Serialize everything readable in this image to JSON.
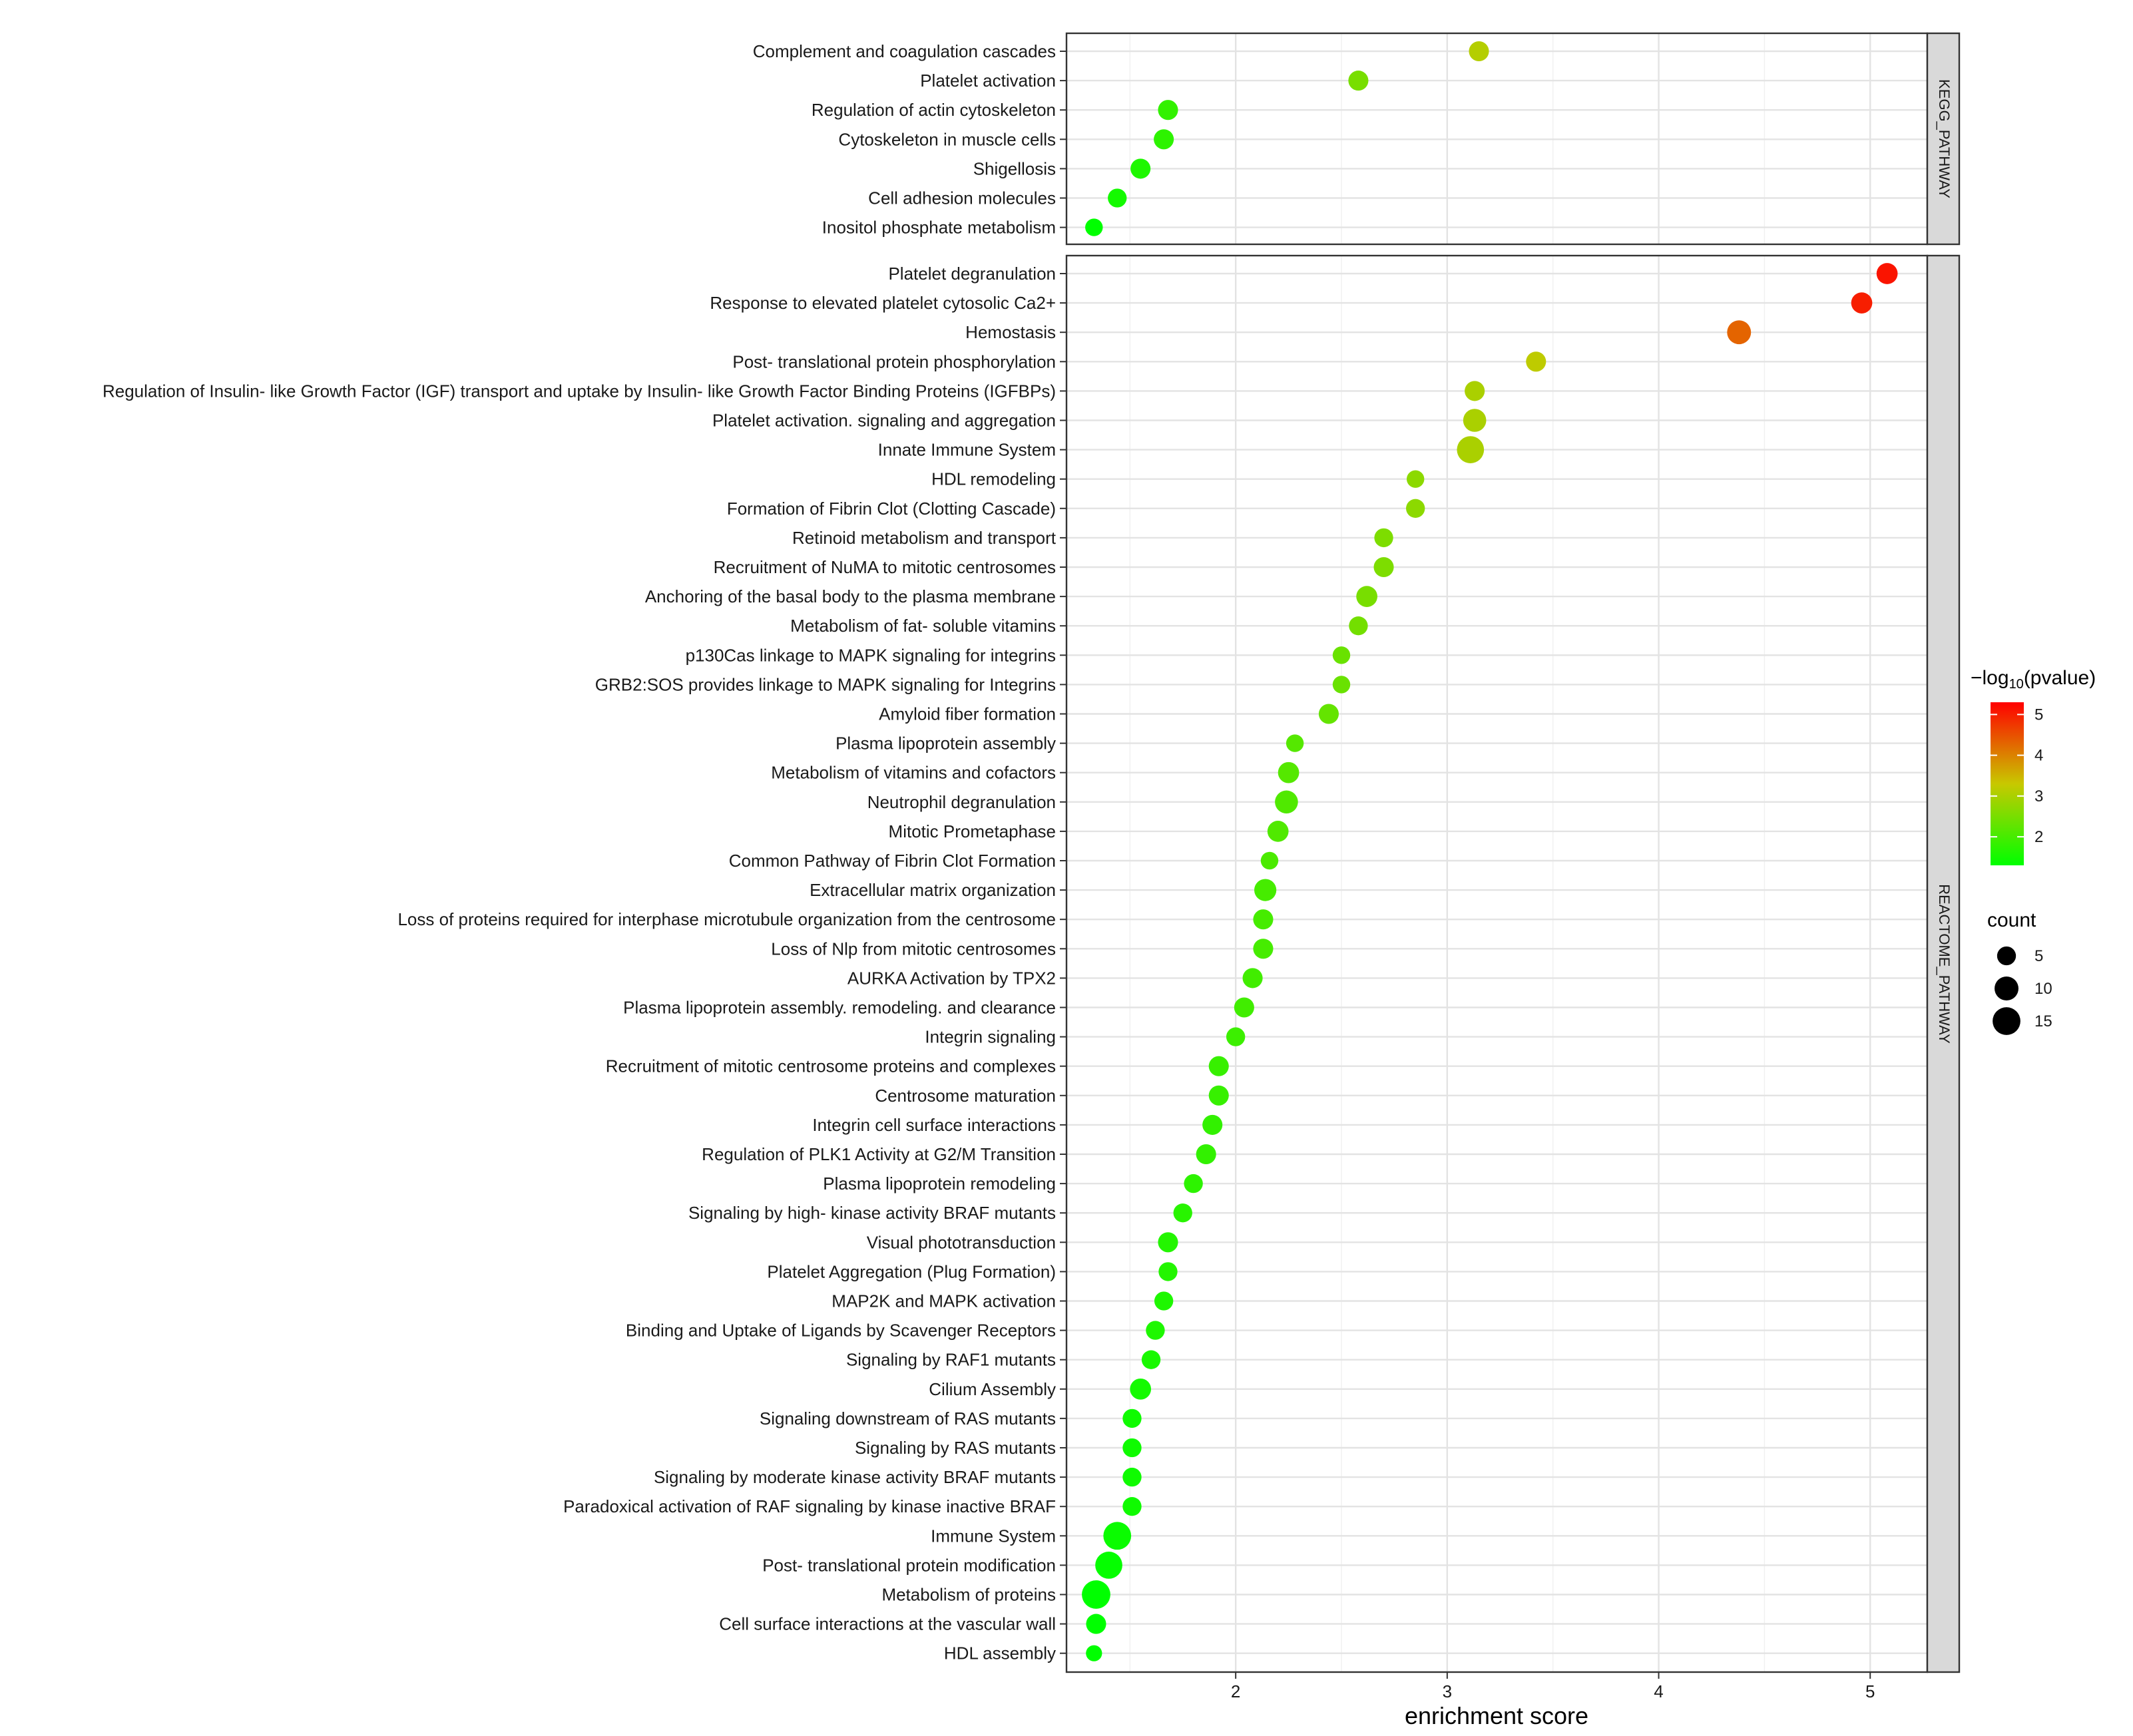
{
  "chart_data": {
    "type": "scatter",
    "x_label": "enrichment score",
    "x_ticks": [
      2,
      3,
      4,
      5
    ],
    "x_range": [
      1.2,
      5.27
    ],
    "color_scale": {
      "title_prefix": "−log",
      "title_subscript": "10",
      "title_suffix": "(pvalue)",
      "ticks": [
        2,
        3,
        4,
        5
      ],
      "range": [
        1.3,
        5.3
      ],
      "low_color": "#00ff00",
      "mid_color": "#c8c800",
      "high_color": "#ff0000"
    },
    "size_legend": {
      "title": "count",
      "values": [
        5,
        10,
        15
      ]
    },
    "panels": [
      {
        "strip": "KEGG_PATHWAY",
        "terms": [
          {
            "term": "Complement and coagulation cascades",
            "x": 3.15,
            "count": 6,
            "logp": 3.1
          },
          {
            "term": "Platelet activation",
            "x": 2.58,
            "count": 6,
            "logp": 2.5
          },
          {
            "term": "Regulation of actin cytoskeleton",
            "x": 1.68,
            "count": 6,
            "logp": 1.8
          },
          {
            "term": "Cytoskeleton in muscle cells",
            "x": 1.66,
            "count": 6,
            "logp": 1.75
          },
          {
            "term": "Shigellosis",
            "x": 1.55,
            "count": 6,
            "logp": 1.6
          },
          {
            "term": "Cell adhesion molecules",
            "x": 1.44,
            "count": 5,
            "logp": 1.5
          },
          {
            "term": "Inositol phosphate metabolism",
            "x": 1.33,
            "count": 4,
            "logp": 1.3
          }
        ]
      },
      {
        "strip": "REACTOME_PATHWAY",
        "terms": [
          {
            "term": "Platelet degranulation",
            "x": 5.08,
            "count": 7,
            "logp": 5.1
          },
          {
            "term": "Response to elevated platelet cytosolic Ca2+",
            "x": 4.96,
            "count": 7,
            "logp": 5.0
          },
          {
            "term": "Hemostasis",
            "x": 4.38,
            "count": 10,
            "logp": 4.3
          },
          {
            "term": "Post- translational protein phosphorylation",
            "x": 3.42,
            "count": 6,
            "logp": 3.2
          },
          {
            "term": "Regulation of Insulin- like Growth Factor (IGF) transport and uptake by Insulin- like Growth Factor Binding Proteins (IGFBPs)",
            "x": 3.13,
            "count": 6,
            "logp": 3.0
          },
          {
            "term": "Platelet activation. signaling and aggregation",
            "x": 3.13,
            "count": 9,
            "logp": 3.0
          },
          {
            "term": "Innate Immune System",
            "x": 3.11,
            "count": 14,
            "logp": 3.0
          },
          {
            "term": "HDL remodeling",
            "x": 2.85,
            "count": 4,
            "logp": 2.7
          },
          {
            "term": "Formation of Fibrin Clot (Clotting Cascade)",
            "x": 2.85,
            "count": 5,
            "logp": 2.7
          },
          {
            "term": "Retinoid metabolism and transport",
            "x": 2.7,
            "count": 5,
            "logp": 2.55
          },
          {
            "term": "Recruitment of NuMA to mitotic centrosomes",
            "x": 2.7,
            "count": 6,
            "logp": 2.55
          },
          {
            "term": "Anchoring of the basal body to the plasma membrane",
            "x": 2.62,
            "count": 7,
            "logp": 2.5
          },
          {
            "term": "Metabolism of fat- soluble vitamins",
            "x": 2.58,
            "count": 5,
            "logp": 2.45
          },
          {
            "term": "p130Cas linkage to MAPK signaling for integrins",
            "x": 2.5,
            "count": 4,
            "logp": 2.35
          },
          {
            "term": "GRB2:SOS provides linkage to MAPK signaling for Integrins",
            "x": 2.5,
            "count": 4,
            "logp": 2.35
          },
          {
            "term": "Amyloid fiber formation",
            "x": 2.44,
            "count": 6,
            "logp": 2.3
          },
          {
            "term": "Plasma lipoprotein assembly",
            "x": 2.28,
            "count": 4,
            "logp": 2.15
          },
          {
            "term": "Metabolism of vitamins and cofactors",
            "x": 2.25,
            "count": 7,
            "logp": 2.15
          },
          {
            "term": "Neutrophil degranulation",
            "x": 2.24,
            "count": 9,
            "logp": 2.1
          },
          {
            "term": "Mitotic Prometaphase",
            "x": 2.2,
            "count": 7,
            "logp": 2.1
          },
          {
            "term": "Common Pathway of Fibrin Clot Formation",
            "x": 2.16,
            "count": 4,
            "logp": 2.05
          },
          {
            "term": "Extracellular matrix organization",
            "x": 2.14,
            "count": 8,
            "logp": 2.0
          },
          {
            "term": "Loss of proteins required for interphase microtubule organization from the centrosome",
            "x": 2.13,
            "count": 6,
            "logp": 2.0
          },
          {
            "term": "Loss of Nlp from mitotic centrosomes",
            "x": 2.13,
            "count": 6,
            "logp": 2.0
          },
          {
            "term": "AURKA Activation by TPX2",
            "x": 2.08,
            "count": 6,
            "logp": 1.95
          },
          {
            "term": "Plasma lipoprotein assembly. remodeling. and clearance",
            "x": 2.04,
            "count": 6,
            "logp": 1.95
          },
          {
            "term": "Integrin signaling",
            "x": 2.0,
            "count": 5,
            "logp": 1.9
          },
          {
            "term": "Recruitment of mitotic centrosome proteins and complexes",
            "x": 1.92,
            "count": 6,
            "logp": 1.85
          },
          {
            "term": "Centrosome maturation",
            "x": 1.92,
            "count": 6,
            "logp": 1.85
          },
          {
            "term": "Integrin cell surface interactions",
            "x": 1.89,
            "count": 6,
            "logp": 1.8
          },
          {
            "term": "Regulation of PLK1 Activity at G2/M Transition",
            "x": 1.86,
            "count": 6,
            "logp": 1.8
          },
          {
            "term": "Plasma lipoprotein remodeling",
            "x": 1.8,
            "count": 5,
            "logp": 1.75
          },
          {
            "term": "Signaling by high- kinase activity BRAF mutants",
            "x": 1.75,
            "count": 5,
            "logp": 1.7
          },
          {
            "term": "Visual phototransduction",
            "x": 1.68,
            "count": 6,
            "logp": 1.65
          },
          {
            "term": "Platelet Aggregation (Plug Formation)",
            "x": 1.68,
            "count": 5,
            "logp": 1.65
          },
          {
            "term": "MAP2K and MAPK activation",
            "x": 1.66,
            "count": 5,
            "logp": 1.6
          },
          {
            "term": "Binding and Uptake of Ligands by Scavenger Receptors",
            "x": 1.62,
            "count": 5,
            "logp": 1.6
          },
          {
            "term": "Signaling by RAF1 mutants",
            "x": 1.6,
            "count": 5,
            "logp": 1.55
          },
          {
            "term": "Cilium Assembly",
            "x": 1.55,
            "count": 7,
            "logp": 1.5
          },
          {
            "term": "Signaling downstream of RAS mutants",
            "x": 1.51,
            "count": 5,
            "logp": 1.45
          },
          {
            "term": "Signaling by RAS mutants",
            "x": 1.51,
            "count": 5,
            "logp": 1.45
          },
          {
            "term": "Signaling by moderate kinase activity BRAF mutants",
            "x": 1.51,
            "count": 5,
            "logp": 1.45
          },
          {
            "term": "Paradoxical activation of RAF signaling by kinase inactive BRAF",
            "x": 1.51,
            "count": 5,
            "logp": 1.45
          },
          {
            "term": "Immune System",
            "x": 1.44,
            "count": 15,
            "logp": 1.4
          },
          {
            "term": "Post- translational protein modification",
            "x": 1.4,
            "count": 14,
            "logp": 1.35
          },
          {
            "term": "Metabolism of proteins",
            "x": 1.34,
            "count": 16,
            "logp": 1.3
          },
          {
            "term": "Cell surface interactions at the vascular wall",
            "x": 1.34,
            "count": 6,
            "logp": 1.3
          },
          {
            "term": "HDL assembly",
            "x": 1.33,
            "count": 3,
            "logp": 1.3
          }
        ]
      }
    ]
  }
}
